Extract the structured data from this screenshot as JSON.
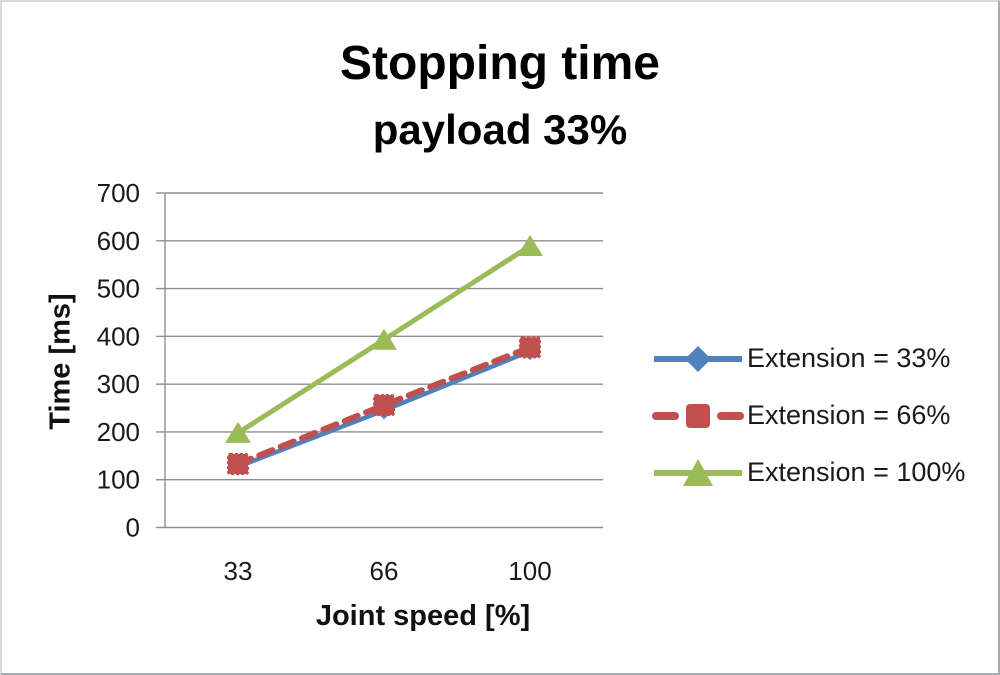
{
  "chart_data": {
    "type": "line",
    "title": "Stopping time",
    "subtitle": "payload 33%",
    "xlabel": "Joint speed [%]",
    "ylabel": "Time [ms]",
    "categories": [
      "33",
      "66",
      "100"
    ],
    "yticks": [
      "0",
      "100",
      "200",
      "300",
      "400",
      "500",
      "600",
      "700"
    ],
    "ylim": [
      0,
      700
    ],
    "grid": true,
    "legend_position": "right",
    "series": [
      {
        "name": "Extension = 33%",
        "values": [
          127,
          245,
          369
        ],
        "color": "#4F81BD",
        "marker": "diamond",
        "style": "solid"
      },
      {
        "name": "Extension = 66%",
        "values": [
          133,
          256,
          377
        ],
        "color": "#C0504D",
        "marker": "square",
        "style": "dashed"
      },
      {
        "name": "Extension = 100%",
        "values": [
          198,
          393,
          589
        ],
        "color": "#9BBB59",
        "marker": "triangle",
        "style": "solid"
      }
    ],
    "axis_color": "#8e8e8e"
  }
}
